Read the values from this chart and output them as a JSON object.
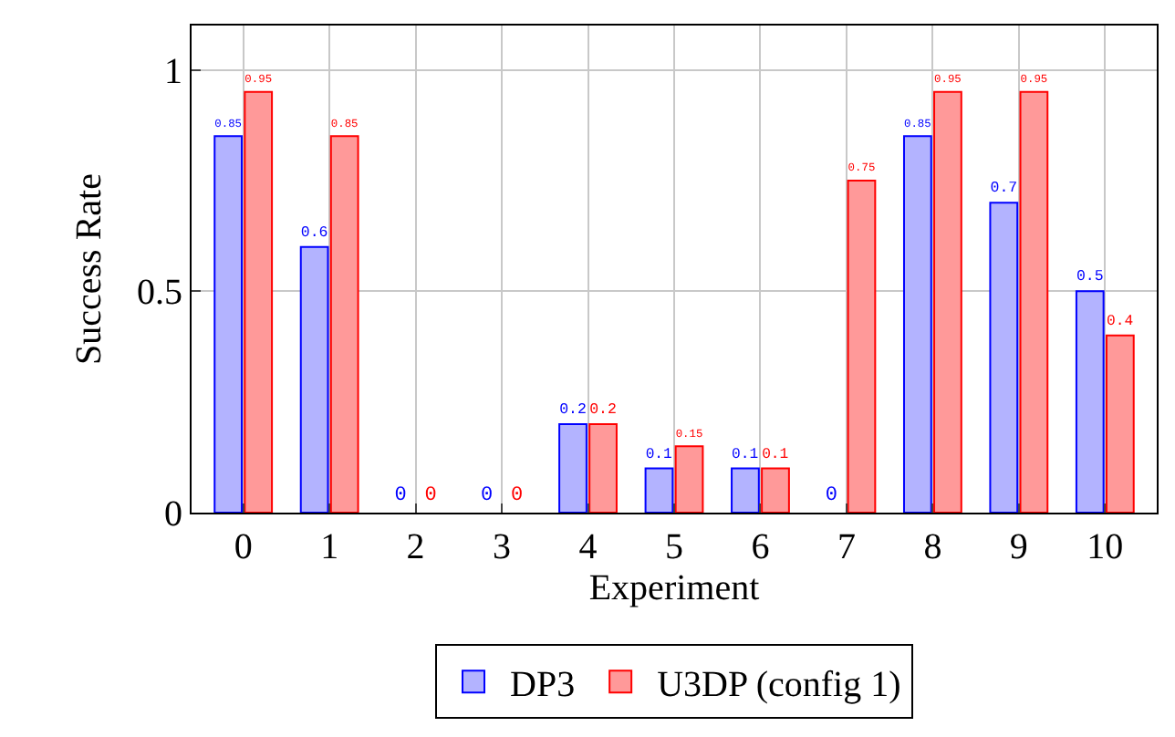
{
  "chart_data": {
    "type": "bar",
    "xlabel": "Experiment",
    "ylabel": "Success Rate",
    "x": [
      0,
      1,
      2,
      3,
      4,
      5,
      6,
      7,
      8,
      9,
      10
    ],
    "series": [
      {
        "name": "DP3",
        "color": "#b3b3ff",
        "values": [
          0.85,
          0.6,
          0,
          0,
          0.2,
          0.1,
          0.1,
          0,
          0.85,
          0.7,
          0.5
        ]
      },
      {
        "name": "U3DP (config 1)",
        "color": "#ff9999",
        "values": [
          0.95,
          0.85,
          0,
          0,
          0.2,
          0.15,
          0.1,
          0.75,
          0.95,
          0.95,
          0.4
        ]
      }
    ],
    "xlim": [
      -0.6,
      10.6
    ],
    "xticks": [
      0,
      1,
      2,
      3,
      4,
      5,
      6,
      7,
      8,
      9,
      10
    ],
    "ylim": [
      0,
      1.1
    ],
    "yticks": [
      0,
      0.5,
      1
    ],
    "grid": true,
    "legend": "bottom",
    "data_labels": true
  }
}
